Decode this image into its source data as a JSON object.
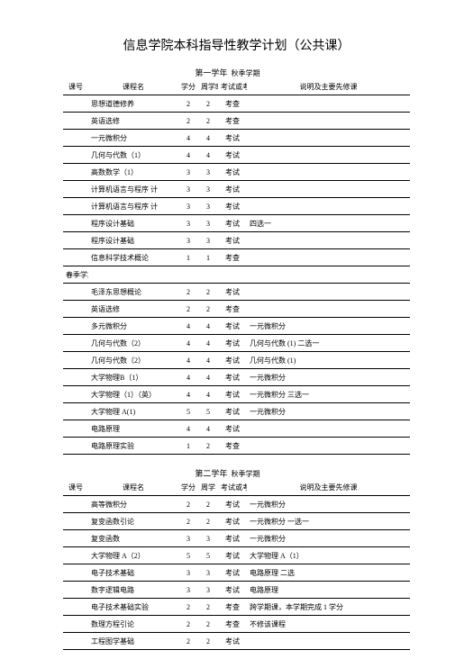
{
  "title": "信息学院本科指导性教学计划（公共课）",
  "year1": {
    "header_year": "第一学年",
    "header_sem": "秋季学期",
    "columns": {
      "kh": "课号",
      "name": "课程名",
      "xf": "学分",
      "zxs": "周学时",
      "ks": "考试或考查",
      "note": "说明及主要先修课"
    },
    "spring_label": "春季学期",
    "rows": [
      {
        "name": "思想道德修养",
        "xf": "2",
        "zxs": "2",
        "ks": "考查",
        "note": ""
      },
      {
        "name": "英语选修",
        "xf": "2",
        "zxs": "2",
        "ks": "考查",
        "note": ""
      },
      {
        "name": "一元微积分",
        "xf": "4",
        "zxs": "4",
        "ks": "考试",
        "note": ""
      },
      {
        "name": "几何与代数（1）",
        "xf": "4",
        "zxs": "4",
        "ks": "考试",
        "note": ""
      },
      {
        "name": "高数数学（1）",
        "xf": "3",
        "zxs": "3",
        "ks": "考试",
        "note": ""
      },
      {
        "name": "计算机语言与程序   计",
        "xf": "3",
        "zxs": "3",
        "ks": "考试",
        "note": ""
      },
      {
        "name": "计算机语言与程序   计",
        "xf": "3",
        "zxs": "3",
        "ks": "考试",
        "note": ""
      },
      {
        "name": "程序设计基础",
        "xf": "3",
        "zxs": "3",
        "ks": "考试",
        "note": "四选一"
      },
      {
        "name": "程序设计基础",
        "xf": "3",
        "zxs": "3",
        "ks": "考试",
        "note": ""
      },
      {
        "name": "信息科学技术概论",
        "xf": "1",
        "zxs": "1",
        "ks": "考查",
        "note": ""
      },
      {
        "spring": true
      },
      {
        "name": "毛泽东思想概论",
        "xf": "2",
        "zxs": "2",
        "ks": "考试",
        "note": ""
      },
      {
        "name": "英语选修",
        "xf": "2",
        "zxs": "2",
        "ks": "考查",
        "note": ""
      },
      {
        "name": "多元微积分",
        "xf": "4",
        "zxs": "4",
        "ks": "考试",
        "note": "一元微积分"
      },
      {
        "name": "几何与代数（2）",
        "xf": "4",
        "zxs": "4",
        "ks": "考试",
        "note": "几何与代数     (1)         二选一"
      },
      {
        "name": "几何与代数（2）",
        "xf": "4",
        "zxs": "4",
        "ks": "考试",
        "note": "几何与代数     (1)"
      },
      {
        "name": "大学物理B（1）",
        "xf": "4",
        "zxs": "4",
        "ks": "考试",
        "note": "一元微积分"
      },
      {
        "name": "大学物理（1）（英）",
        "xf": "4",
        "zxs": "4",
        "ks": "考试",
        "note": "一元微积分                      三选一"
      },
      {
        "name": "大学物理 A(1)",
        "xf": "5",
        "zxs": "5",
        "ks": "考试",
        "note": "一元微积分"
      },
      {
        "name": "电路原理",
        "xf": "4",
        "zxs": "4",
        "ks": "考试",
        "note": ""
      },
      {
        "name": "电路原理实验",
        "xf": "1",
        "zxs": "2",
        "ks": "考查",
        "note": ""
      }
    ]
  },
  "year2": {
    "header_year": "第二学年",
    "header_sem": "秋季学期",
    "columns": {
      "kh": "课号",
      "name": "课程名",
      "xf": "学分",
      "zxs": "周学",
      "ks": "考试或考查",
      "note": "说明及主要先修课"
    },
    "rows": [
      {
        "name": "高等微积分",
        "xf": "2",
        "zxs": "2",
        "ks": "考试",
        "note": "一元微积分"
      },
      {
        "name": "复变函数引论",
        "xf": "2",
        "zxs": "2",
        "ks": "考试",
        "note": "一元微积分                   一选一"
      },
      {
        "name": "复变函数",
        "xf": "3",
        "zxs": "3",
        "ks": "考试",
        "note": "一元微积分"
      },
      {
        "name": "大学物理 A（2）",
        "xf": "5",
        "zxs": "5",
        "ks": "考试",
        "note": "大学物理 A（1）"
      },
      {
        "name": "电子技术基础",
        "xf": "3",
        "zxs": "3",
        "ks": "考试",
        "note": "电路原理                           二选"
      },
      {
        "name": "数字逻辑电路",
        "xf": "3",
        "zxs": "3",
        "ks": "考试",
        "note": "电路原理"
      },
      {
        "name": "电子技术基础实验",
        "xf": "2",
        "zxs": "2",
        "ks": "考查",
        "note": "跨学期课，本学期完成     1 学分"
      },
      {
        "name": "数理方程引论",
        "xf": "2",
        "zxs": "2",
        "ks": "考查",
        "note": "不修该课程"
      },
      {
        "name": "工程图学基础",
        "xf": "2",
        "zxs": "2",
        "ks": "考试",
        "note": ""
      }
    ]
  }
}
